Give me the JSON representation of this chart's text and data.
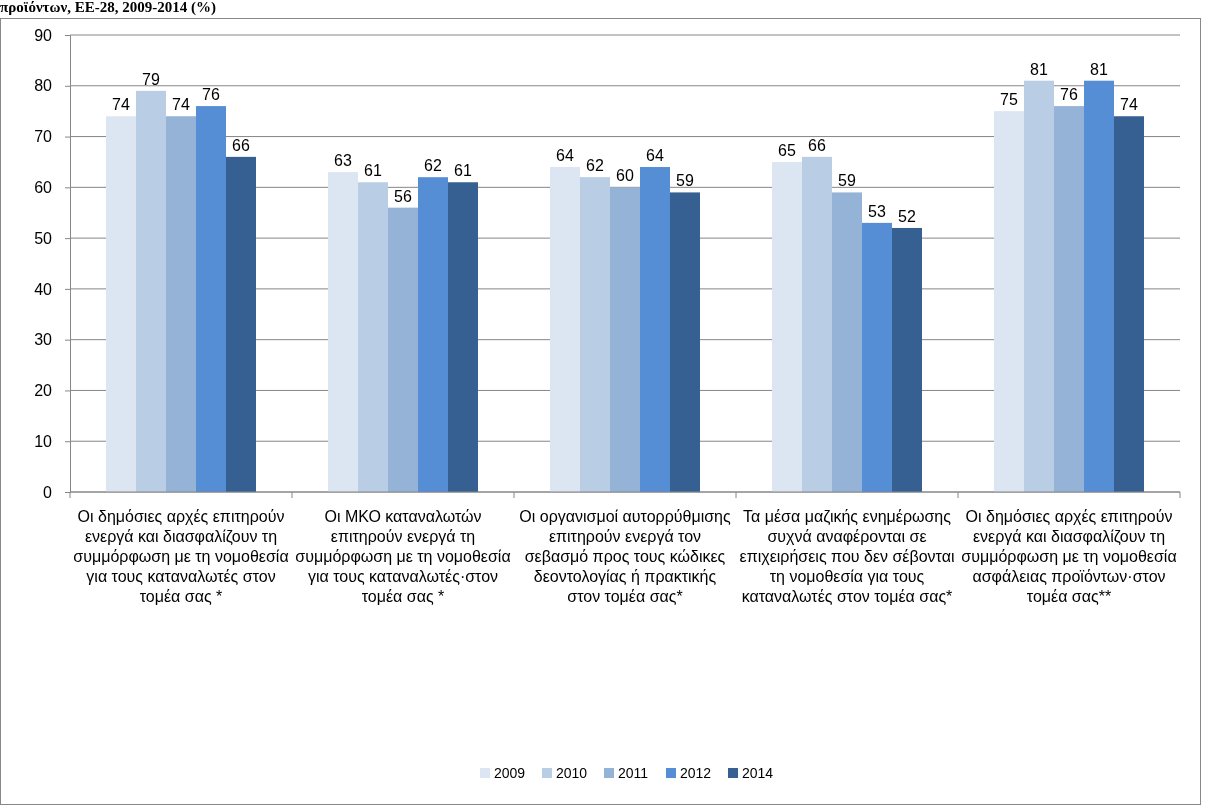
{
  "chart_data": {
    "type": "bar",
    "title": "προϊόντων, ΕΕ-28, 2009-2014 (%)",
    "categories": [
      "Οι δημόσιες αρχές επιτηρούν ενεργά και διασφαλίζουν τη συμμόρφωση με τη νομοθεσία για τους καταναλωτές στον τομέα σας *",
      "Οι ΜΚΟ καταναλωτών επιτηρούν ενεργά τη συμμόρφωση με τη νομοθεσία για τους καταναλωτές·στον τομέα σας *",
      "Οι οργανισμοί αυτορρύθμισης επιτηρούν ενεργά τον σεβασμό προς τους κώδικες δεοντολογίας ή πρακτικής στον τομέα σας*",
      "Τα μέσα μαζικής ενημέρωσης συχνά αναφέρονται σε επιχειρήσεις που δεν σέβονται τη νομοθεσία για τους καταναλωτές στον τομέα σας*",
      "Οι δημόσιες αρχές επιτηρούν ενεργά και διασφαλίζουν τη συμμόρφωση με τη νομοθεσία ασφάλειας προϊόντων·στον τομέα σας**"
    ],
    "series": [
      {
        "name": "2009",
        "color": "#dce6f2",
        "values": [
          74,
          63,
          64,
          65,
          75
        ]
      },
      {
        "name": "2010",
        "color": "#b9cde5",
        "values": [
          79,
          61,
          62,
          66,
          81
        ]
      },
      {
        "name": "2011",
        "color": "#95b3d7",
        "values": [
          74,
          56,
          60,
          59,
          76
        ]
      },
      {
        "name": "2012",
        "color": "#558ed5",
        "values": [
          76,
          62,
          64,
          53,
          81
        ]
      },
      {
        "name": "2014",
        "color": "#376092",
        "values": [
          66,
          61,
          59,
          52,
          74
        ]
      }
    ],
    "ylim": [
      0,
      90
    ],
    "yticks": [
      0,
      10,
      20,
      30,
      40,
      50,
      60,
      70,
      80,
      90
    ],
    "grid": "y",
    "legend": "bottom",
    "data_labels": true
  }
}
